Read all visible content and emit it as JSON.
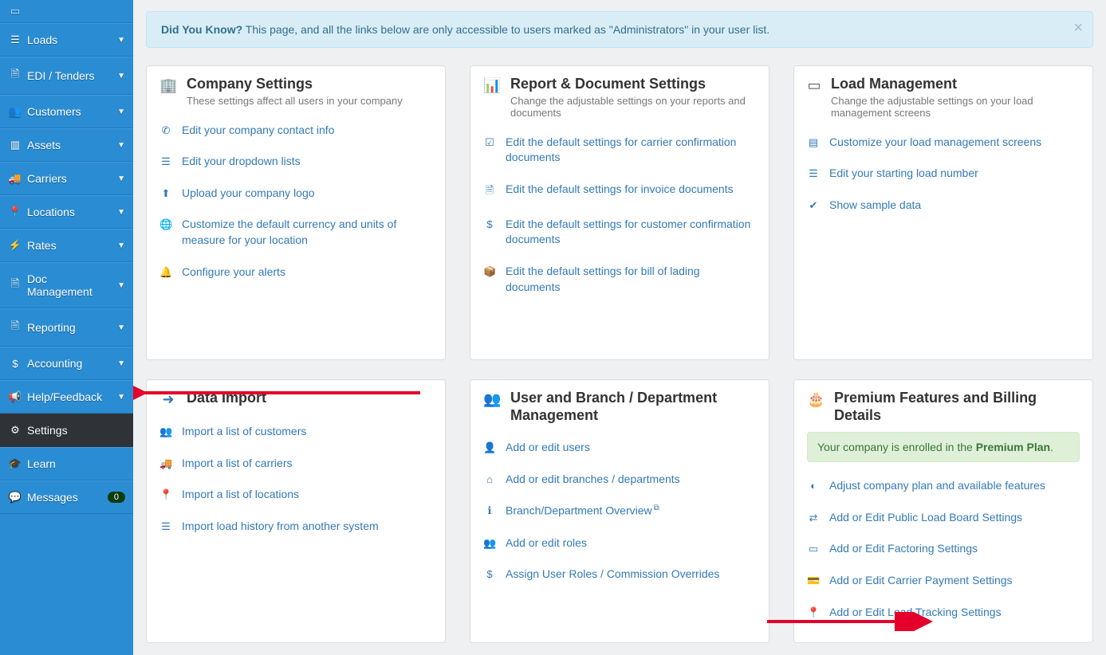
{
  "sidebar": {
    "top_item": "",
    "items": [
      {
        "icon": "☰",
        "label": "Loads",
        "caret": true
      },
      {
        "icon": "🗎",
        "label": "EDI / Tenders",
        "caret": true
      },
      {
        "icon": "👥",
        "label": "Customers",
        "caret": true
      },
      {
        "icon": "▥",
        "label": "Assets",
        "caret": true
      },
      {
        "icon": "🚚",
        "label": "Carriers",
        "caret": true
      },
      {
        "icon": "📍",
        "label": "Locations",
        "caret": true
      },
      {
        "icon": "⚡",
        "label": "Rates",
        "caret": true
      },
      {
        "icon": "🗎",
        "label": "Doc Management",
        "caret": true
      },
      {
        "icon": "🗎",
        "label": "Reporting",
        "caret": true
      },
      {
        "icon": "$",
        "label": "Accounting",
        "caret": true
      },
      {
        "icon": "📢",
        "label": "Help/Feedback",
        "caret": true
      },
      {
        "icon": "⚙",
        "label": "Settings",
        "caret": false,
        "active": true
      },
      {
        "icon": "🎓",
        "label": "Learn",
        "caret": false
      },
      {
        "icon": "💬",
        "label": "Messages",
        "caret": false,
        "badge": "0"
      }
    ]
  },
  "alert": {
    "lead": "Did You Know?",
    "text": " This page, and all the links below are only accessible to users marked as \"Administrators\" in your user list."
  },
  "cards_row1": [
    {
      "icon": "🏢",
      "icon_cls": "green",
      "title": "Company Settings",
      "sub": "These settings affect all users in your company",
      "links": [
        {
          "icon": "✆",
          "txt": "Edit your company contact info"
        },
        {
          "icon": "☰",
          "txt": "Edit your dropdown lists"
        },
        {
          "icon": "⬆",
          "txt": "Upload your company logo"
        },
        {
          "icon": "🌐",
          "txt": "Customize the default currency and units of measure for your location"
        },
        {
          "icon": "🔔",
          "txt": "Configure your alerts"
        }
      ]
    },
    {
      "icon": "📊",
      "icon_cls": "blue",
      "title": "Report & Document Settings",
      "sub": "Change the adjustable settings on your reports and documents",
      "links": [
        {
          "icon": "☑",
          "txt": "Edit the default settings for carrier confirmation documents"
        },
        {
          "icon": "🗎",
          "txt": "Edit the default settings for invoice documents"
        },
        {
          "icon": "$",
          "txt": "Edit the default settings for customer confirmation documents"
        },
        {
          "icon": "📦",
          "txt": "Edit the default settings for bill of lading documents"
        }
      ]
    },
    {
      "icon": "▭",
      "icon_cls": "",
      "title": "Load Management",
      "sub": "Change the adjustable settings on your load management screens",
      "links": [
        {
          "icon": "▤",
          "txt": "Customize your load management screens"
        },
        {
          "icon": "☰",
          "txt": "Edit your starting load number"
        },
        {
          "icon": "✔",
          "txt": "Show sample data"
        }
      ]
    }
  ],
  "cards_row2": [
    {
      "icon": "➜",
      "icon_cls": "blue",
      "title": "Data Import",
      "links": [
        {
          "icon": "👥",
          "txt": "Import a list of customers"
        },
        {
          "icon": "🚚",
          "txt": "Import a list of carriers"
        },
        {
          "icon": "📍",
          "txt": "Import a list of locations"
        },
        {
          "icon": "☰",
          "txt": "Import load history from another system"
        }
      ]
    },
    {
      "icon": "👥",
      "icon_cls": "",
      "title": "User and Branch / Department Management",
      "links": [
        {
          "icon": "👤",
          "txt": "Add or edit users"
        },
        {
          "icon": "⌂",
          "txt": "Add or edit branches / departments"
        },
        {
          "icon": "ℹ",
          "txt": "Branch/Department Overview",
          "ext": true
        },
        {
          "icon": "👥",
          "txt": "Add or edit roles"
        },
        {
          "icon": "$",
          "txt": "Assign User Roles / Commission Overrides"
        }
      ]
    },
    {
      "icon": "🎂",
      "icon_cls": "green",
      "title": "Premium Features and Billing Details",
      "inner_alert": {
        "pre": "Your company is enrolled in the ",
        "bold": "Premium Plan",
        "post": "."
      },
      "links": [
        {
          "icon": "◐",
          "txt": "Adjust company plan and available features"
        },
        {
          "icon": "⇄",
          "txt": "Add or Edit Public Load Board Settings"
        },
        {
          "icon": "▭",
          "txt": "Add or Edit Factoring Settings"
        },
        {
          "icon": "💳",
          "txt": "Add or Edit Carrier Payment Settings"
        },
        {
          "icon": "📍",
          "txt": "Add or Edit Load Tracking Settings"
        }
      ]
    }
  ],
  "colors": {
    "sidebar": "#2a8dd4",
    "link": "#337ab7",
    "arrow": "#e4002b"
  }
}
